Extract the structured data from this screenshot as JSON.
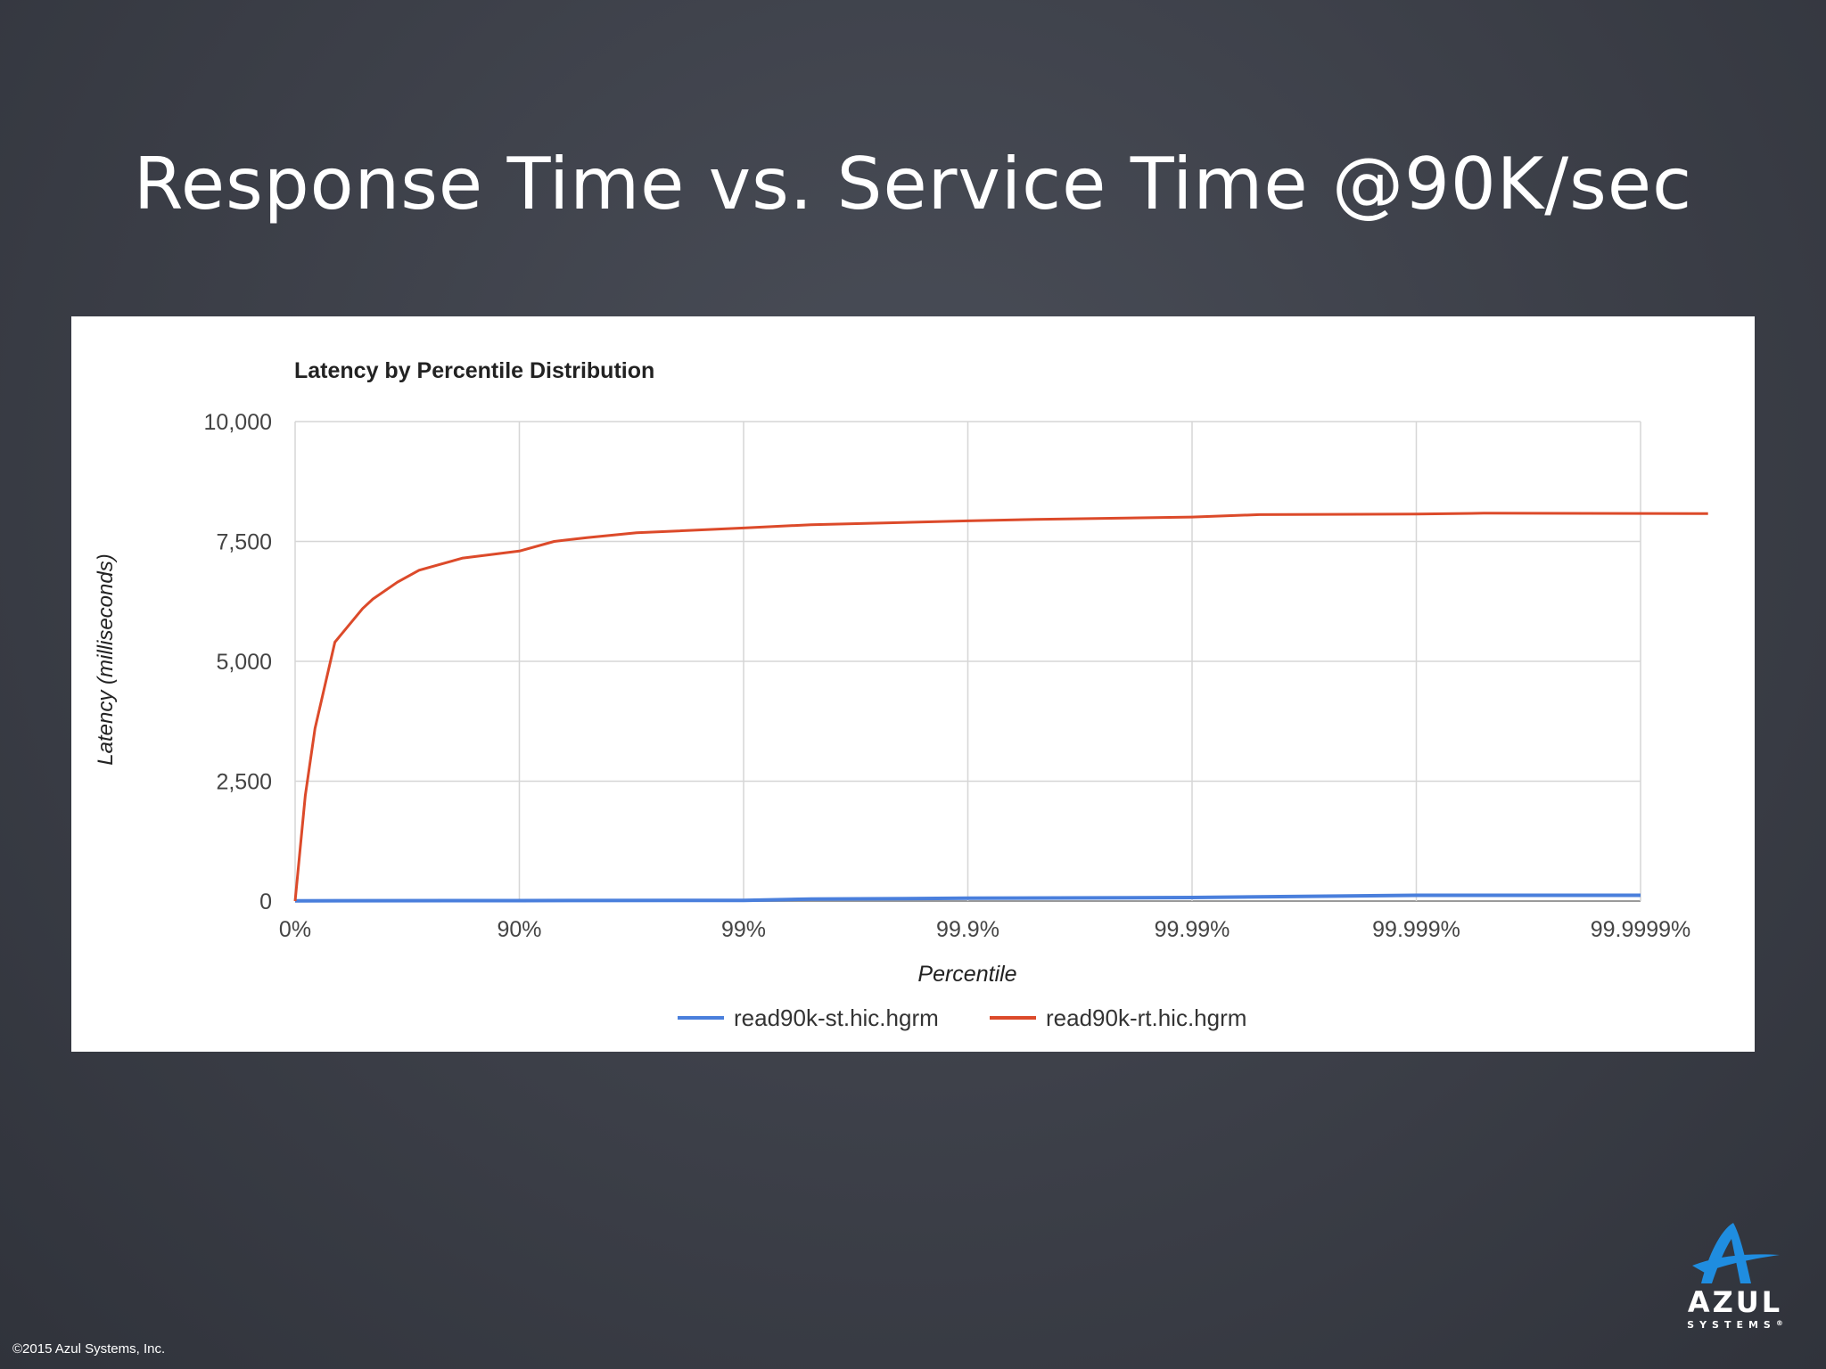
{
  "slide": {
    "title": "Response Time vs. Service Time @90K/sec",
    "copyright": "©2015 Azul Systems, Inc.",
    "logo_word": "AZUL",
    "logo_sub": "SYSTEMS",
    "logo_mark": "®",
    "colors": {
      "background": "#3c3f48",
      "logo_blue": "#1f8de0"
    }
  },
  "chart_data": {
    "type": "line",
    "title": "Latency by Percentile Distribution",
    "xlabel": "Percentile",
    "ylabel": "Latency (milliseconds)",
    "x_scale": "percentile-log",
    "x_ticks": [
      "0%",
      "90%",
      "99%",
      "99.9%",
      "99.99%",
      "99.999%",
      "99.9999%"
    ],
    "y_ticks": [
      "0",
      "2,500",
      "5,000",
      "7,500",
      "10,000"
    ],
    "ylim": [
      0,
      10000
    ],
    "grid": true,
    "legend_position": "bottom",
    "series": [
      {
        "name": "read90k-st.hic.hgrm",
        "color": "#4a7fdc",
        "x": [
          0,
          90,
          99,
          99.5,
          99.9,
          99.99,
          99.999,
          99.9999
        ],
        "y": [
          5,
          10,
          15,
          40,
          60,
          75,
          120,
          120
        ]
      },
      {
        "name": "read90k-rt.hic.hgrm",
        "color": "#dc4a2a",
        "x": [
          0,
          9.9,
          18.5,
          33.5,
          50,
          55,
          65,
          72,
          82,
          90,
          93,
          95,
          97,
          99,
          99.5,
          99.9,
          99.95,
          99.99,
          99.995,
          99.999,
          99.9995,
          99.99995
        ],
        "y": [
          0,
          2200,
          3600,
          5400,
          6100,
          6300,
          6650,
          6900,
          7150,
          7300,
          7500,
          7580,
          7680,
          7780,
          7850,
          7930,
          7960,
          8010,
          8060,
          8070,
          8090,
          8080
        ]
      }
    ]
  }
}
